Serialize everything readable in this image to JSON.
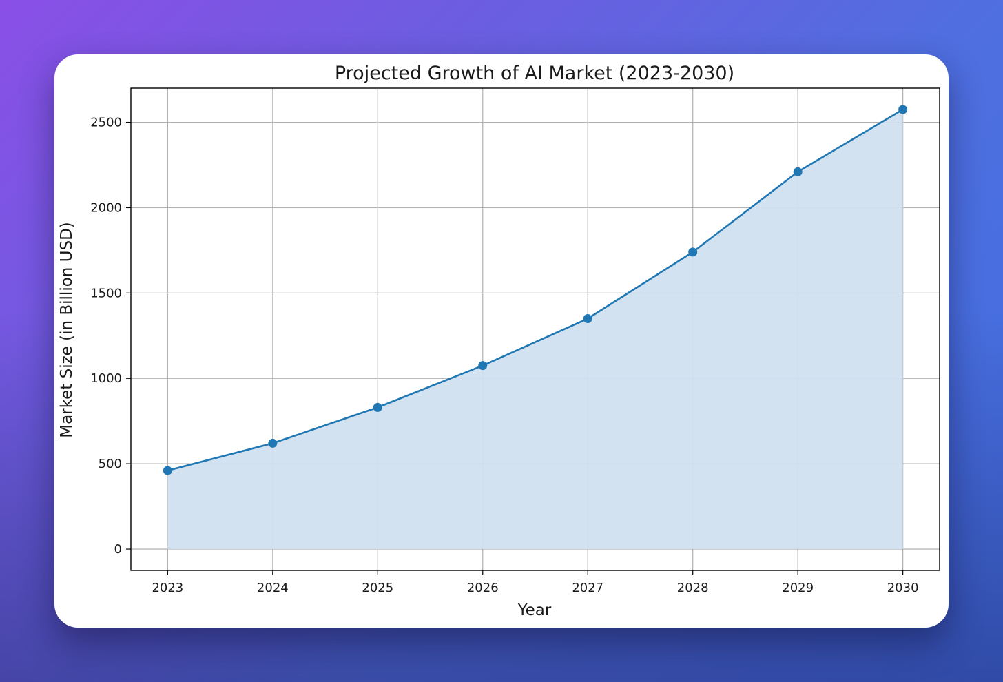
{
  "chart_data": {
    "type": "area",
    "title": "Projected Growth of AI Market (2023-2030)",
    "xlabel": "Year",
    "ylabel": "Market Size (in Billion USD)",
    "x": [
      2023,
      2024,
      2025,
      2026,
      2027,
      2028,
      2029,
      2030
    ],
    "x_tick_labels": [
      "2023",
      "2024",
      "2025",
      "2026",
      "2027",
      "2028",
      "2029",
      "2030"
    ],
    "y_ticks": [
      0,
      500,
      1000,
      1500,
      2000,
      2500
    ],
    "y_tick_labels": [
      "0",
      "500",
      "1000",
      "1500",
      "2000",
      "2500"
    ],
    "series": [
      {
        "values": [
          460,
          620,
          830,
          1075,
          1350,
          1740,
          2210,
          2575
        ],
        "color": "#1f77b4",
        "fill_color": "#d0e0f0",
        "marker": "circle"
      }
    ],
    "xlim": [
      2022.65,
      2030.35
    ],
    "ylim": [
      -125,
      2700
    ],
    "grid": true,
    "legend": "none"
  }
}
